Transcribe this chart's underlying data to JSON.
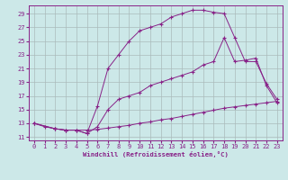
{
  "xlabel": "Windchill (Refroidissement éolien,°C)",
  "bg_color": "#cce8e8",
  "grid_color": "#aabbbb",
  "line_color": "#882288",
  "xlim": [
    -0.5,
    23.5
  ],
  "ylim": [
    10.5,
    30.2
  ],
  "xticks": [
    0,
    1,
    2,
    3,
    4,
    5,
    6,
    7,
    8,
    9,
    10,
    11,
    12,
    13,
    14,
    15,
    16,
    17,
    18,
    19,
    20,
    21,
    22,
    23
  ],
  "yticks": [
    11,
    13,
    15,
    17,
    19,
    21,
    23,
    25,
    27,
    29
  ],
  "curve_bottom_x": [
    0,
    1,
    2,
    3,
    4,
    5,
    6,
    7,
    8,
    9,
    10,
    11,
    12,
    13,
    14,
    15,
    16,
    17,
    18,
    19,
    20,
    21,
    22,
    23
  ],
  "curve_bottom_y": [
    13.0,
    12.5,
    12.2,
    12.0,
    12.0,
    12.0,
    12.1,
    12.3,
    12.5,
    12.7,
    13.0,
    13.2,
    13.5,
    13.7,
    14.0,
    14.3,
    14.6,
    14.9,
    15.2,
    15.4,
    15.6,
    15.8,
    16.0,
    16.2
  ],
  "curve_mid_x": [
    0,
    2,
    3,
    4,
    5,
    6,
    7,
    8,
    9,
    10,
    11,
    12,
    13,
    14,
    15,
    16,
    17,
    18,
    19,
    20,
    21,
    22,
    23
  ],
  "curve_mid_y": [
    13.0,
    12.2,
    12.0,
    12.0,
    11.5,
    12.5,
    15.0,
    16.5,
    17.0,
    17.5,
    18.5,
    19.0,
    19.5,
    20.0,
    20.5,
    21.5,
    22.0,
    25.5,
    22.0,
    22.2,
    22.5,
    18.5,
    16.0
  ],
  "curve_top_x": [
    0,
    2,
    3,
    4,
    5,
    6,
    7,
    8,
    9,
    10,
    11,
    12,
    13,
    14,
    15,
    16,
    17,
    18,
    19,
    20,
    21,
    22,
    23
  ],
  "curve_top_y": [
    13.0,
    12.2,
    12.0,
    12.0,
    11.5,
    15.5,
    21.0,
    23.0,
    25.0,
    26.5,
    27.0,
    27.5,
    28.5,
    29.0,
    29.5,
    29.5,
    29.2,
    29.0,
    25.5,
    22.0,
    22.0,
    18.8,
    16.5
  ]
}
